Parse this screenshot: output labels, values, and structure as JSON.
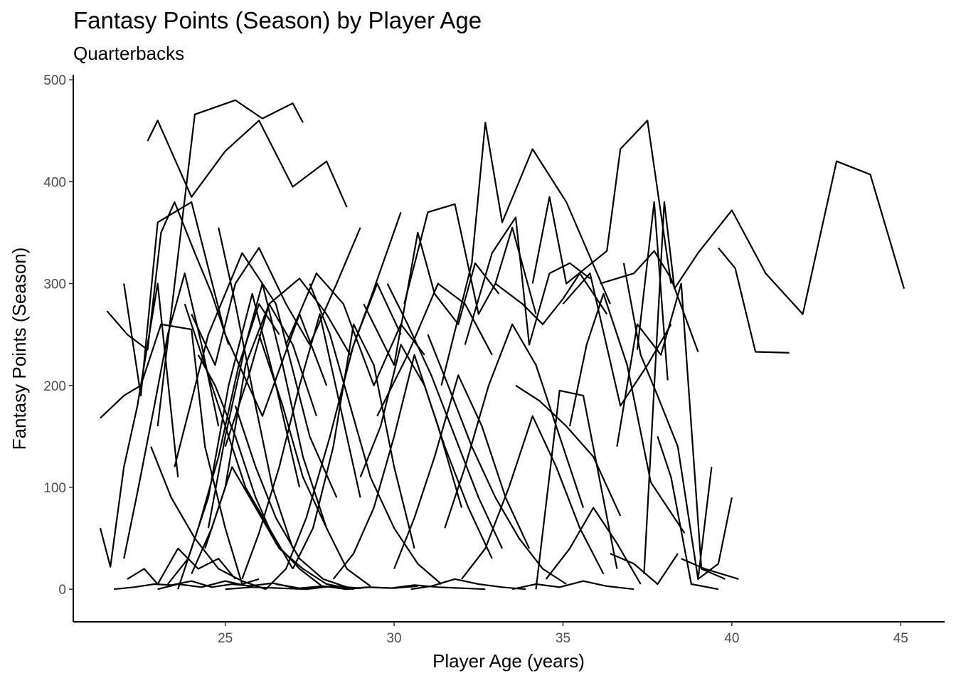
{
  "chart_data": {
    "type": "line",
    "title": "Fantasy Points (Season) by Player Age",
    "subtitle": "Quarterbacks",
    "xlabel": "Player Age (years)",
    "ylabel": "Fantasy Points (Season)",
    "xlim": [
      20.5,
      46.3
    ],
    "ylim": [
      -32,
      505
    ],
    "xticks": [
      25,
      30,
      35,
      40,
      45
    ],
    "yticks": [
      0,
      100,
      200,
      300,
      400,
      500
    ],
    "grid": false,
    "legend": "none",
    "series": [
      {
        "x": [
          37.4,
          38.0,
          38.3,
          39.0,
          40.0,
          41.0,
          42.1,
          43.1,
          44.1,
          45.1
        ],
        "y": [
          15,
          380,
          295,
          330,
          372,
          310,
          270,
          420,
          407,
          295
        ]
      },
      {
        "x": [
          39.6,
          40.1,
          40.7,
          41.7
        ],
        "y": [
          335,
          315,
          233,
          232
        ]
      },
      {
        "x": [
          36.1,
          37.1,
          37.7,
          38.2,
          39.0
        ],
        "y": [
          300,
          310,
          332,
          305,
          233
        ]
      },
      {
        "x": [
          23.0,
          24.1,
          25.3,
          26.1,
          27.0,
          27.3
        ],
        "y": [
          160,
          466,
          480,
          462,
          477,
          458
        ]
      },
      {
        "x": [
          22.7,
          23.0,
          24.0,
          25.0,
          26.0,
          27.0,
          28.0,
          28.6
        ],
        "y": [
          440,
          460,
          385,
          430,
          460,
          395,
          420,
          375
        ]
      },
      {
        "x": [
          31.4,
          32.3,
          32.7,
          33.2,
          34.1,
          35.1,
          36.4
        ],
        "y": [
          200,
          320,
          458,
          360,
          432,
          380,
          280
        ]
      },
      {
        "x": [
          34.1,
          34.6,
          35.1,
          36.3,
          36.7,
          37.5,
          38.2
        ],
        "y": [
          300,
          385,
          300,
          332,
          432,
          460,
          300
        ]
      },
      {
        "x": [
          21.3,
          22.0,
          22.5,
          23.1,
          24.0,
          24.4,
          25.0,
          25.5,
          26.0
        ],
        "y": [
          168,
          190,
          200,
          260,
          255,
          140,
          60,
          5,
          10
        ]
      },
      {
        "x": [
          21.5,
          22.1,
          22.7,
          23.1,
          23.5,
          24.1,
          24.6,
          25.1
        ],
        "y": [
          273,
          250,
          235,
          350,
          380,
          330,
          290,
          240
        ]
      },
      {
        "x": [
          21.3,
          21.6,
          22.0,
          22.4,
          23.0,
          23.6
        ],
        "y": [
          60,
          22,
          120,
          180,
          300,
          110
        ]
      },
      {
        "x": [
          22.0,
          22.5,
          23.0,
          24.0,
          25.0,
          26.1,
          27.2,
          28.0
        ],
        "y": [
          300,
          190,
          360,
          380,
          250,
          170,
          270,
          200
        ]
      },
      {
        "x": [
          24.0,
          24.7,
          25.3,
          26.0,
          26.8,
          27.5,
          28.3,
          29.0
        ],
        "y": [
          270,
          220,
          300,
          335,
          280,
          240,
          300,
          355
        ]
      },
      {
        "x": [
          25.0,
          25.7,
          26.3,
          27.2,
          28.0,
          28.7,
          29.3,
          30.2
        ],
        "y": [
          140,
          210,
          280,
          305,
          270,
          230,
          285,
          370
        ]
      },
      {
        "x": [
          30.3,
          31.0,
          31.8,
          32.5,
          33.0,
          33.5,
          34.2
        ],
        "y": [
          280,
          370,
          378,
          270,
          300,
          355,
          270
        ]
      },
      {
        "x": [
          29.1,
          30.0,
          30.7,
          31.2,
          31.9,
          32.4,
          33.1
        ],
        "y": [
          280,
          220,
          350,
          290,
          260,
          320,
          290
        ]
      },
      {
        "x": [
          32.1,
          32.9,
          33.6,
          34.0,
          34.6,
          35.2,
          35.8
        ],
        "y": [
          240,
          330,
          365,
          240,
          310,
          320,
          305
        ]
      },
      {
        "x": [
          33.0,
          33.8,
          34.4,
          35.0,
          35.5,
          36.3
        ],
        "y": [
          300,
          280,
          260,
          285,
          310,
          270
        ]
      },
      {
        "x": [
          35.0,
          35.8,
          36.7,
          37.5,
          38.2
        ],
        "y": [
          280,
          310,
          180,
          220,
          260
        ]
      },
      {
        "x": [
          23.5,
          24.5,
          25.5,
          26.5,
          27.5,
          28.3
        ],
        "y": [
          120,
          250,
          330,
          280,
          150,
          90
        ]
      },
      {
        "x": [
          26.8,
          27.7,
          28.5,
          29.4,
          30.2,
          30.9
        ],
        "y": [
          240,
          310,
          280,
          200,
          260,
          230
        ]
      },
      {
        "x": [
          29.5,
          30.4,
          31.3,
          32.1,
          32.9
        ],
        "y": [
          170,
          230,
          300,
          280,
          230
        ]
      },
      {
        "x": [
          33.6,
          34.3,
          35.1,
          35.9,
          36.7
        ],
        "y": [
          200,
          185,
          160,
          130,
          72
        ]
      },
      {
        "x": [
          34.2,
          34.9,
          35.6,
          36.6
        ],
        "y": [
          0,
          195,
          190,
          20
        ]
      },
      {
        "x": [
          36.8,
          37.3,
          37.8,
          38.4,
          39.0,
          39.4
        ],
        "y": [
          320,
          230,
          190,
          140,
          10,
          120
        ]
      },
      {
        "x": [
          35.2,
          35.7,
          36.2,
          36.9,
          37.6,
          38.6
        ],
        "y": [
          160,
          240,
          290,
          220,
          105,
          55
        ]
      },
      {
        "x": [
          37.2,
          37.7,
          38.1
        ],
        "y": [
          235,
          380,
          205
        ]
      },
      {
        "x": [
          36.6,
          37.2,
          37.9,
          38.5,
          39.1,
          39.8
        ],
        "y": [
          140,
          260,
          230,
          300,
          20,
          10
        ]
      },
      {
        "x": [
          37.8,
          38.2,
          38.8,
          39.6
        ],
        "y": [
          150,
          110,
          5,
          0
        ]
      },
      {
        "x": [
          39.0,
          39.6,
          40.0
        ],
        "y": [
          10,
          25,
          90
        ]
      },
      {
        "x": [
          38.5,
          39.2,
          39.7,
          40.2
        ],
        "y": [
          30,
          20,
          15,
          10
        ]
      },
      {
        "x": [
          36.4,
          37.1,
          37.8,
          38.4
        ],
        "y": [
          35,
          25,
          5,
          35
        ]
      },
      {
        "x": [
          22.0,
          22.4,
          22.9,
          23.3,
          23.8,
          24.3,
          24.8
        ],
        "y": [
          30,
          95,
          180,
          250,
          310,
          240,
          160
        ]
      },
      {
        "x": [
          22.1,
          22.6,
          23.0,
          23.6,
          24.2,
          24.8,
          25.3
        ],
        "y": [
          10,
          20,
          5,
          40,
          20,
          30,
          10
        ]
      },
      {
        "x": [
          21.7,
          22.3,
          22.9,
          23.4,
          24.0,
          24.6,
          25.2,
          25.8
        ],
        "y": [
          0,
          2,
          5,
          4,
          8,
          2,
          5,
          3
        ]
      },
      {
        "x": [
          23.0,
          23.6,
          24.3,
          25.0,
          25.7,
          26.4,
          27.1
        ],
        "y": [
          0,
          5,
          2,
          8,
          3,
          6,
          1
        ]
      },
      {
        "x": [
          24.0,
          24.6,
          25.2,
          25.9,
          26.6,
          27.3,
          28.0,
          28.8
        ],
        "y": [
          15,
          60,
          120,
          80,
          40,
          20,
          5,
          0
        ]
      },
      {
        "x": [
          24.2,
          24.7,
          25.3,
          25.9,
          26.5,
          27.2,
          27.9
        ],
        "y": [
          230,
          200,
          150,
          90,
          45,
          20,
          2
        ]
      },
      {
        "x": [
          24.5,
          25.0,
          25.6,
          26.1,
          26.7,
          27.3,
          28.0
        ],
        "y": [
          60,
          150,
          240,
          300,
          220,
          130,
          60
        ]
      },
      {
        "x": [
          25.5,
          26.0,
          26.6,
          27.2,
          27.8,
          28.4,
          29.0
        ],
        "y": [
          10,
          55,
          120,
          200,
          270,
          180,
          90
        ]
      },
      {
        "x": [
          26.0,
          26.7,
          27.3,
          28.0,
          28.6,
          29.3
        ],
        "y": [
          250,
          180,
          110,
          60,
          20,
          3
        ]
      },
      {
        "x": [
          27.0,
          27.6,
          28.2,
          28.8,
          29.4,
          30.0,
          30.6
        ],
        "y": [
          20,
          60,
          140,
          260,
          220,
          120,
          40
        ]
      },
      {
        "x": [
          27.5,
          28.1,
          28.7,
          29.3,
          30.0,
          30.7,
          31.4
        ],
        "y": [
          300,
          250,
          180,
          110,
          60,
          25,
          5
        ]
      },
      {
        "x": [
          28.2,
          28.8,
          29.4,
          30.0,
          30.6,
          31.3,
          32.0
        ],
        "y": [
          10,
          35,
          80,
          150,
          230,
          160,
          80
        ]
      },
      {
        "x": [
          29.0,
          29.6,
          30.2,
          30.9,
          31.5,
          32.2,
          32.9
        ],
        "y": [
          110,
          160,
          240,
          200,
          140,
          80,
          30
        ]
      },
      {
        "x": [
          30.0,
          30.6,
          31.2,
          31.9,
          32.6,
          33.3,
          34.0
        ],
        "y": [
          20,
          70,
          130,
          210,
          160,
          90,
          40
        ]
      },
      {
        "x": [
          31.0,
          31.6,
          32.3,
          33.0,
          33.7,
          34.4,
          35.1
        ],
        "y": [
          250,
          200,
          140,
          90,
          50,
          20,
          5
        ]
      },
      {
        "x": [
          32.0,
          32.7,
          33.4,
          34.1,
          34.8,
          35.5,
          36.2
        ],
        "y": [
          10,
          40,
          100,
          170,
          120,
          60,
          15
        ]
      },
      {
        "x": [
          30.5,
          31.1,
          31.8,
          32.5,
          33.2,
          33.9
        ],
        "y": [
          0,
          3,
          10,
          5,
          2,
          0
        ]
      },
      {
        "x": [
          28.5,
          29.2,
          29.9,
          30.6,
          31.3,
          32.0,
          32.7
        ],
        "y": [
          0,
          2,
          1,
          4,
          2,
          1,
          0
        ]
      },
      {
        "x": [
          26.5,
          27.2,
          27.9,
          28.6,
          29.3,
          30.0,
          30.7
        ],
        "y": [
          5,
          1,
          3,
          0,
          2,
          1,
          3
        ]
      },
      {
        "x": [
          25.0,
          25.8,
          26.6,
          27.4,
          28.2,
          29.0
        ],
        "y": [
          0,
          2,
          1,
          0,
          3,
          1
        ]
      },
      {
        "x": [
          33.5,
          34.2,
          34.9,
          35.6,
          36.3,
          37.1
        ],
        "y": [
          0,
          5,
          2,
          8,
          3,
          0
        ]
      },
      {
        "x": [
          34.5,
          35.2,
          35.9,
          36.6,
          37.3
        ],
        "y": [
          10,
          40,
          80,
          45,
          5
        ]
      },
      {
        "x": [
          22.8,
          23.4,
          24.1,
          24.8,
          25.5,
          26.2
        ],
        "y": [
          140,
          90,
          50,
          20,
          8,
          0
        ]
      },
      {
        "x": [
          23.3,
          23.9,
          24.5,
          25.1,
          25.8,
          26.5,
          27.2
        ],
        "y": [
          5,
          30,
          90,
          200,
          290,
          200,
          100
        ]
      },
      {
        "x": [
          23.8,
          24.4,
          25.0,
          25.6,
          26.3,
          27.0
        ],
        "y": [
          280,
          220,
          160,
          100,
          60,
          20
        ]
      },
      {
        "x": [
          24.4,
          25.0,
          25.6,
          26.3,
          27.0,
          27.7
        ],
        "y": [
          40,
          100,
          220,
          280,
          240,
          170
        ]
      },
      {
        "x": [
          25.3,
          25.9,
          26.5,
          27.2,
          27.9,
          28.6
        ],
        "y": [
          180,
          120,
          70,
          30,
          10,
          2
        ]
      },
      {
        "x": [
          26.2,
          26.8,
          27.4,
          28.1,
          28.8,
          29.5,
          30.2
        ],
        "y": [
          0,
          20,
          70,
          150,
          240,
          300,
          250
        ]
      },
      {
        "x": [
          29.8,
          30.4,
          31.1,
          31.8,
          32.5,
          33.2
        ],
        "y": [
          300,
          260,
          210,
          150,
          90,
          40
        ]
      },
      {
        "x": [
          31.5,
          32.1,
          32.8,
          33.5,
          34.2,
          34.9,
          35.6
        ],
        "y": [
          60,
          120,
          200,
          260,
          220,
          150,
          80
        ]
      },
      {
        "x": [
          24.8,
          25.3,
          25.9,
          26.4,
          27.0
        ],
        "y": [
          355,
          280,
          180,
          100,
          40
        ]
      },
      {
        "x": [
          23.6,
          24.2,
          24.8,
          25.4,
          26.0,
          26.6
        ],
        "y": [
          0,
          60,
          130,
          220,
          280,
          250
        ]
      }
    ]
  }
}
